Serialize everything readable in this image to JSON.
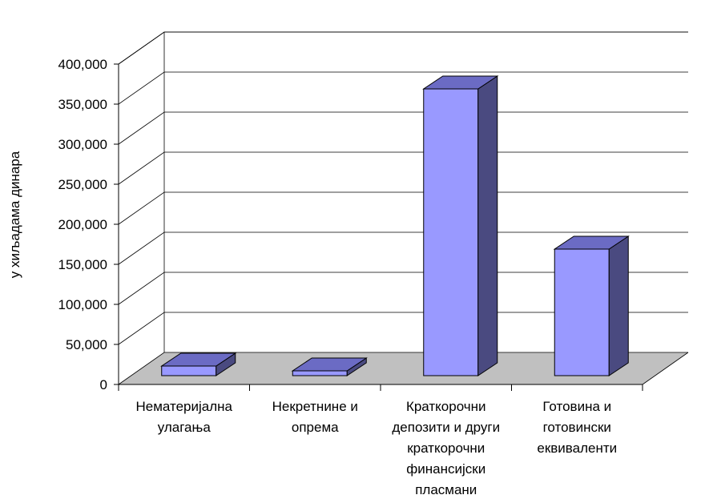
{
  "chart_data": {
    "type": "bar",
    "title": "",
    "xlabel": "",
    "ylabel": "у хиљадама динара",
    "ylim": [
      0,
      400000
    ],
    "yticks": [
      0,
      50000,
      100000,
      150000,
      200000,
      250000,
      300000,
      350000,
      400000
    ],
    "ytick_labels": [
      "0",
      "50,000",
      "100,000",
      "150,000",
      "200,000",
      "250,000",
      "300,000",
      "350,000",
      "400,000"
    ],
    "categories": [
      [
        "Нематеријална",
        "улагања"
      ],
      [
        "Некретнине и",
        "опрема"
      ],
      [
        "Краткорочни",
        "депозити и други",
        "краткорочни",
        "финансијски",
        "пласмани"
      ],
      [
        "Готовина и",
        "готовински",
        "еквиваленти"
      ]
    ],
    "values": [
      12000,
      6000,
      358000,
      158000
    ],
    "grid": true,
    "style": "3d",
    "colors": {
      "bar_front": "#9999FF",
      "bar_top": "#6B6BC4",
      "bar_side": "#4A4A80",
      "floor": "#C0C0C0",
      "grid": "#000000"
    }
  }
}
